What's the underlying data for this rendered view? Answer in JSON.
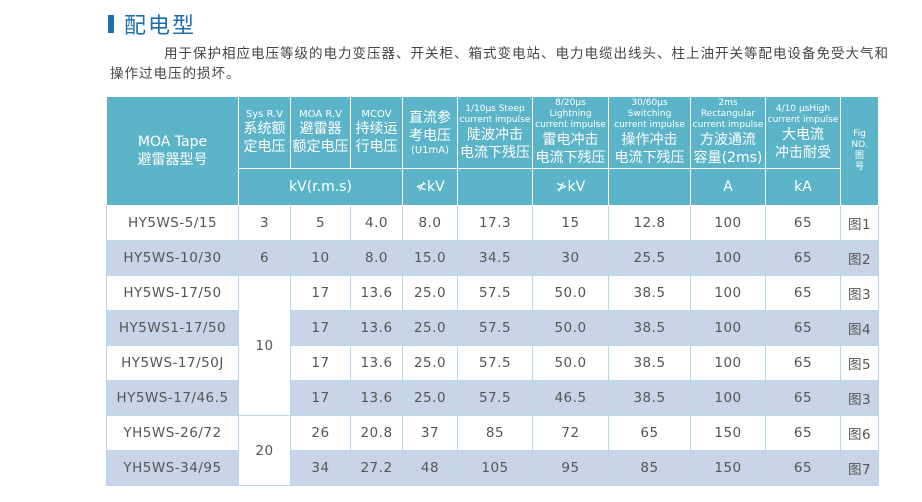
{
  "title": "配电型",
  "description": "用于保护相应电压等级的电力变压器、开关柜、箱式变电站、电力电缆出线头、柱上油开关等配电设备免受大气和操作过电压的损坏。",
  "headers": {
    "model": [
      "MOA Tape",
      "避雷器型号"
    ],
    "sys": [
      "Sys R.V",
      "系统额",
      "定电压"
    ],
    "moa": [
      "MOA R.V",
      "避雷器",
      "额定电压"
    ],
    "mcov": [
      "MCOV",
      "持续运",
      "行电压"
    ],
    "dc": [
      "直流参",
      "考电压",
      "(U1mA)"
    ],
    "steep": [
      "1/10μs Steep",
      "current impulse",
      "陡波冲击",
      "电流下残压"
    ],
    "light": [
      "8/20μs Lightning",
      "current impulse",
      "雷电冲击",
      "电流下残压"
    ],
    "switch": [
      "30/60μs Switching",
      "current impulse",
      "操作冲击",
      "电流下残压"
    ],
    "rect": [
      "2ms Rectangular",
      "current impulse",
      "方波通流",
      "容量(2ms)"
    ],
    "high": [
      "4/10 μsHigh",
      "current impulse",
      "大电流",
      "冲击耐受"
    ],
    "fig": [
      "Fig",
      "NO.",
      "图",
      "号"
    ]
  },
  "units": {
    "kv_rms": "kV(r.m.s)",
    "dc": "≮kV",
    "light": "≯kV",
    "rect": "A",
    "high": "kA"
  },
  "rows": [
    [
      "HY5WS-5/15",
      "3",
      "5",
      "4.0",
      "8.0",
      "17.3",
      "15",
      "12.8",
      "100",
      "65",
      "图1"
    ],
    [
      "HY5WS-10/30",
      "6",
      "10",
      "8.0",
      "15.0",
      "34.5",
      "30",
      "25.5",
      "100",
      "65",
      "图2"
    ],
    [
      "HY5WS-17/50",
      "10",
      "17",
      "13.6",
      "25.0",
      "57.5",
      "50.0",
      "38.5",
      "100",
      "65",
      "图3"
    ],
    [
      "HY5WS1-17/50",
      "",
      "17",
      "13.6",
      "25.0",
      "57.5",
      "50.0",
      "38.5",
      "100",
      "65",
      "图4"
    ],
    [
      "HY5WS-17/50J",
      "",
      "17",
      "13.6",
      "25.0",
      "57.5",
      "50.0",
      "38.5",
      "100",
      "65",
      "图5"
    ],
    [
      "HY5WS-17/46.5",
      "",
      "17",
      "13.6",
      "25.0",
      "57.5",
      "46.5",
      "38.5",
      "100",
      "65",
      "图3"
    ],
    [
      "YH5WS-26/72",
      "20",
      "26",
      "20.8",
      "37",
      "85",
      "72",
      "65",
      "150",
      "65",
      "图6"
    ],
    [
      "YH5WS-34/95",
      "",
      "34",
      "27.2",
      "48",
      "105",
      "95",
      "85",
      "150",
      "65",
      "图7"
    ]
  ]
}
